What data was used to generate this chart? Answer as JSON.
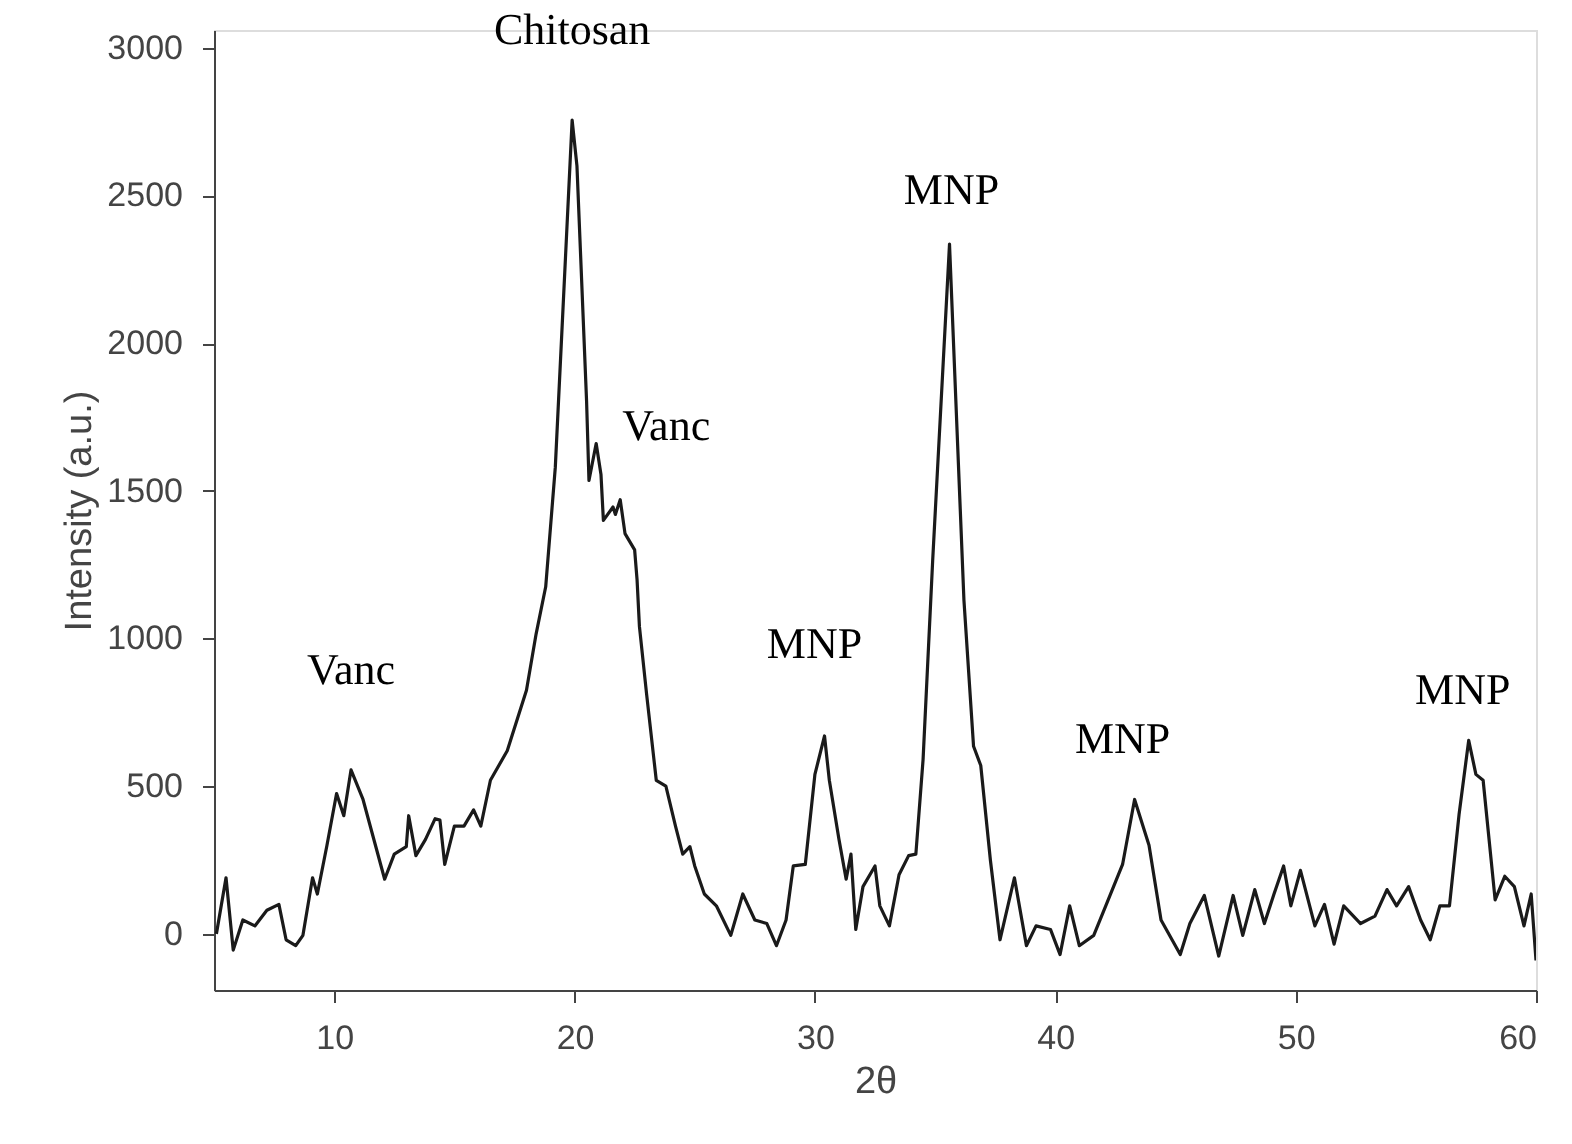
{
  "chart_data": {
    "type": "line",
    "xlabel": "2θ",
    "ylabel": "Intensity (a.u.)",
    "xlim": [
      5,
      60
    ],
    "ylim": [
      -190,
      3060
    ],
    "xticks": [
      10,
      20,
      30,
      40,
      50,
      60
    ],
    "yticks": [
      0,
      500,
      1000,
      1500,
      2000,
      2500,
      3000
    ],
    "grid": false,
    "marker": "none",
    "line_style": "solid",
    "series": [
      {
        "color": "#1a1a1a",
        "x": [
          5.1,
          5.5,
          5.8,
          6.2,
          6.7,
          7.2,
          7.7,
          8.0,
          8.4,
          8.7,
          9.1,
          9.3,
          9.7,
          10.1,
          10.4,
          10.7,
          11.2,
          12.1,
          12.5,
          13.0,
          13.1,
          13.4,
          13.8,
          14.2,
          14.4,
          14.6,
          15.0,
          15.4,
          15.8,
          16.1,
          16.5,
          17.2,
          18.0,
          18.4,
          18.8,
          19.2,
          19.9,
          20.1,
          20.5,
          20.6,
          20.9,
          21.1,
          21.2,
          21.6,
          21.7,
          21.9,
          22.1,
          22.5,
          22.6,
          22.7,
          23.0,
          23.4,
          23.8,
          24.2,
          24.5,
          24.8,
          25.0,
          25.4,
          25.9,
          26.5,
          27.0,
          27.5,
          28.0,
          28.4,
          28.8,
          29.1,
          29.6,
          30.0,
          30.4,
          30.6,
          31.0,
          31.3,
          31.5,
          31.7,
          32.0,
          32.5,
          32.7,
          33.1,
          33.5,
          33.9,
          34.2,
          34.5,
          34.9,
          35.6,
          36.2,
          36.6,
          36.9,
          37.3,
          37.7,
          38.3,
          38.8,
          39.2,
          39.8,
          40.2,
          40.6,
          41.0,
          41.6,
          42.1,
          42.8,
          43.3,
          43.9,
          44.4,
          45.2,
          45.6,
          46.2,
          46.8,
          47.4,
          47.8,
          48.3,
          48.7,
          49.1,
          49.5,
          49.8,
          50.2,
          50.8,
          51.2,
          51.6,
          52.0,
          52.7,
          53.3,
          53.8,
          54.2,
          54.7,
          55.2,
          55.6,
          56.0,
          56.4,
          56.8,
          57.2,
          57.5,
          57.8,
          58.3,
          58.7,
          59.1,
          59.5,
          59.8,
          60.0
        ],
        "values": [
          0,
          190,
          -55,
          47,
          27,
          80,
          100,
          -20,
          -40,
          -5,
          190,
          135,
          300,
          475,
          400,
          555,
          455,
          185,
          270,
          295,
          400,
          265,
          320,
          390,
          385,
          235,
          365,
          365,
          420,
          365,
          520,
          620,
          825,
          1015,
          1175,
          1580,
          2755,
          2600,
          1805,
          1535,
          1660,
          1555,
          1400,
          1445,
          1420,
          1470,
          1355,
          1300,
          1200,
          1040,
          810,
          520,
          500,
          365,
          270,
          295,
          230,
          135,
          95,
          -5,
          135,
          47,
          35,
          -40,
          47,
          230,
          235,
          540,
          670,
          520,
          320,
          185,
          270,
          15,
          160,
          230,
          95,
          27,
          200,
          265,
          270,
          590,
          1265,
          2335,
          1130,
          635,
          570,
          250,
          -20,
          190,
          -40,
          27,
          15,
          -70,
          95,
          -40,
          -5,
          95,
          235,
          455,
          300,
          47,
          -70,
          35,
          130,
          -75,
          130,
          -5,
          150,
          35,
          135,
          230,
          95,
          215,
          27,
          100,
          -35,
          95,
          35,
          60,
          150,
          95,
          160,
          47,
          -20,
          95,
          95,
          405,
          655,
          540,
          520,
          115,
          195,
          160,
          27,
          135,
          -90
        ]
      }
    ],
    "annotations": [
      {
        "text": "Vanc",
        "x": 10.7,
        "y": 555
      },
      {
        "text": "Chitosan",
        "x": 19.9,
        "y": 2755
      },
      {
        "text": "Vanc",
        "x": 20.9,
        "y": 1660
      },
      {
        "text": "MNP",
        "x": 30.4,
        "y": 670
      },
      {
        "text": "MNP",
        "x": 35.6,
        "y": 2335
      },
      {
        "text": "MNP",
        "x": 43.3,
        "y": 455
      },
      {
        "text": "MNP",
        "x": 57.2,
        "y": 655
      }
    ]
  }
}
